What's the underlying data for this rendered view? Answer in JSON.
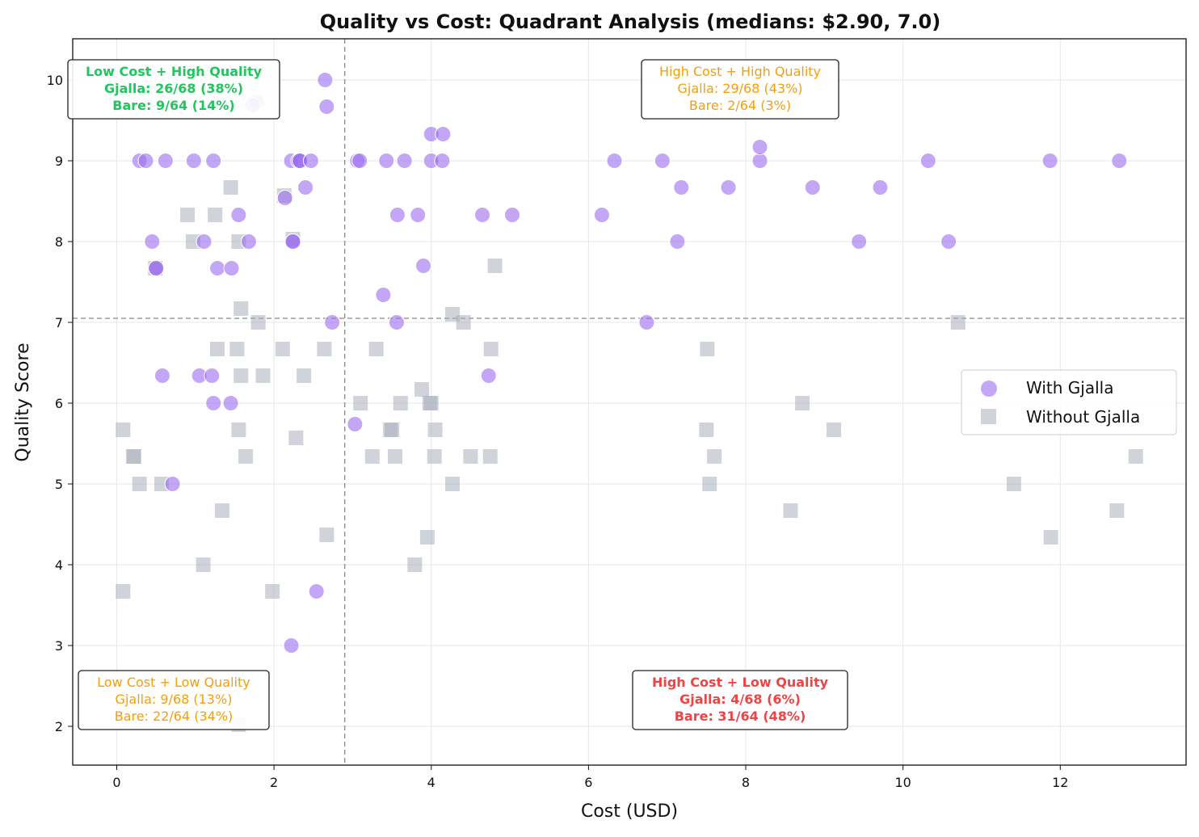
{
  "chart_data": {
    "type": "scatter",
    "title": "Quality vs Cost: Quadrant Analysis (medians: $2.90, 7.0)",
    "xlabel": "Cost (USD)",
    "ylabel": "Quality Score",
    "xlim": [
      -0.56,
      13.6
    ],
    "ylim": [
      1.52,
      10.51
    ],
    "xticks": [
      0,
      2,
      4,
      6,
      8,
      10,
      12
    ],
    "yticks": [
      2,
      3,
      4,
      5,
      6,
      7,
      8,
      9,
      10
    ],
    "grid": true,
    "median_lines": {
      "x": 2.9,
      "y": 7.05
    },
    "legend": {
      "placement": "right",
      "entries": [
        "With Gjalla",
        "Without Gjalla"
      ]
    },
    "colors": {
      "gjalla": "#9b6cf0",
      "bare": "#a9afbb",
      "green": "#22c55e",
      "orange": "#f59e0b",
      "red": "#ef4444"
    },
    "series": [
      {
        "name": "With Gjalla",
        "marker": "circle",
        "points": [
          [
            0.29,
            9
          ],
          [
            0.37,
            9
          ],
          [
            0.62,
            9
          ],
          [
            0.98,
            9
          ],
          [
            1.23,
            9
          ],
          [
            2.22,
            9
          ],
          [
            2.31,
            9
          ],
          [
            2.33,
            9
          ],
          [
            2.33,
            9
          ],
          [
            2.47,
            9
          ],
          [
            3.06,
            9
          ],
          [
            3.09,
            9
          ],
          [
            3.43,
            9
          ],
          [
            3.66,
            9
          ],
          [
            4.0,
            9
          ],
          [
            4.14,
            9
          ],
          [
            6.33,
            9
          ],
          [
            6.94,
            9
          ],
          [
            8.18,
            9
          ],
          [
            10.32,
            9
          ],
          [
            11.87,
            9
          ],
          [
            12.75,
            9
          ],
          [
            2.65,
            10
          ],
          [
            2.67,
            9.67
          ],
          [
            1.78,
            9.73
          ],
          [
            1.73,
            9.69
          ],
          [
            4.0,
            9.33
          ],
          [
            4.15,
            9.33
          ],
          [
            8.18,
            9.17
          ],
          [
            2.4,
            8.67
          ],
          [
            2.14,
            8.54
          ],
          [
            7.18,
            8.67
          ],
          [
            7.78,
            8.67
          ],
          [
            8.85,
            8.67
          ],
          [
            9.71,
            8.67
          ],
          [
            1.55,
            8.33
          ],
          [
            3.57,
            8.33
          ],
          [
            3.83,
            8.33
          ],
          [
            4.65,
            8.33
          ],
          [
            5.03,
            8.33
          ],
          [
            6.17,
            8.33
          ],
          [
            0.45,
            8
          ],
          [
            1.11,
            8
          ],
          [
            1.68,
            8
          ],
          [
            2.24,
            8
          ],
          [
            2.24,
            8
          ],
          [
            7.13,
            8
          ],
          [
            9.44,
            8
          ],
          [
            10.58,
            8
          ],
          [
            0.5,
            7.67
          ],
          [
            0.5,
            7.67
          ],
          [
            1.28,
            7.67
          ],
          [
            1.46,
            7.67
          ],
          [
            3.9,
            7.7
          ],
          [
            3.39,
            7.34
          ],
          [
            2.74,
            7
          ],
          [
            3.56,
            7
          ],
          [
            6.74,
            7
          ],
          [
            0.58,
            6.34
          ],
          [
            1.05,
            6.34
          ],
          [
            1.21,
            6.34
          ],
          [
            4.73,
            6.34
          ],
          [
            1.23,
            6
          ],
          [
            1.45,
            6
          ],
          [
            3.03,
            5.74
          ],
          [
            0.71,
            5
          ],
          [
            2.54,
            3.67
          ],
          [
            2.22,
            3.0
          ]
        ]
      },
      {
        "name": "Without Gjalla",
        "marker": "square",
        "points": [
          [
            0.08,
            5.67
          ],
          [
            0.08,
            3.67
          ],
          [
            0.21,
            5.34
          ],
          [
            0.22,
            5.34
          ],
          [
            0.29,
            5.0
          ],
          [
            0.57,
            5.0
          ],
          [
            0.49,
            7.67
          ],
          [
            0.9,
            8.33
          ],
          [
            0.97,
            8
          ],
          [
            1.25,
            8.33
          ],
          [
            1.45,
            8.67
          ],
          [
            1.55,
            8
          ],
          [
            1.28,
            6.67
          ],
          [
            1.53,
            6.67
          ],
          [
            1.58,
            7.17
          ],
          [
            1.58,
            6.34
          ],
          [
            1.55,
            5.67
          ],
          [
            1.64,
            5.34
          ],
          [
            1.34,
            4.67
          ],
          [
            1.1,
            4.0
          ],
          [
            1.8,
            7.0
          ],
          [
            1.86,
            6.34
          ],
          [
            1.98,
            3.67
          ],
          [
            2.11,
            6.67
          ],
          [
            2.13,
            8.57
          ],
          [
            2.24,
            8.03
          ],
          [
            2.28,
            5.57
          ],
          [
            2.38,
            6.34
          ],
          [
            2.64,
            6.67
          ],
          [
            2.67,
            4.37
          ],
          [
            1.55,
            2.02
          ],
          [
            3.3,
            6.67
          ],
          [
            3.1,
            6
          ],
          [
            3.25,
            5.34
          ],
          [
            3.48,
            5.67
          ],
          [
            3.5,
            5.67
          ],
          [
            3.54,
            5.34
          ],
          [
            3.61,
            6
          ],
          [
            3.88,
            6.17
          ],
          [
            3.98,
            6
          ],
          [
            4.0,
            6
          ],
          [
            4.05,
            5.67
          ],
          [
            4.04,
            5.34
          ],
          [
            3.95,
            4.34
          ],
          [
            3.79,
            4.0
          ],
          [
            4.27,
            7.1
          ],
          [
            4.41,
            7.0
          ],
          [
            4.27,
            5.0
          ],
          [
            4.5,
            5.34
          ],
          [
            4.75,
            5.34
          ],
          [
            4.76,
            6.67
          ],
          [
            4.81,
            7.7
          ],
          [
            7.51,
            6.67
          ],
          [
            7.5,
            5.67
          ],
          [
            7.6,
            5.34
          ],
          [
            7.54,
            5.0
          ],
          [
            8.57,
            4.67
          ],
          [
            8.72,
            6.0
          ],
          [
            9.12,
            5.67
          ],
          [
            10.7,
            7.0
          ],
          [
            11.41,
            5.0
          ],
          [
            11.88,
            4.34
          ],
          [
            12.72,
            4.67
          ],
          [
            12.96,
            5.34
          ]
        ]
      }
    ],
    "annotations": [
      {
        "quadrant": "top-left",
        "color": "green",
        "bold": true,
        "lines": [
          "Low Cost + High Quality",
          "Gjalla: 26/68 (38%)",
          "Bare: 9/64 (14%)"
        ]
      },
      {
        "quadrant": "top-right",
        "color": "orange",
        "bold": false,
        "lines": [
          "High Cost + High Quality",
          "Gjalla: 29/68 (43%)",
          "Bare: 2/64 (3%)"
        ]
      },
      {
        "quadrant": "bottom-left",
        "color": "orange",
        "bold": false,
        "lines": [
          "Low Cost + Low Quality",
          "Gjalla: 9/68 (13%)",
          "Bare: 22/64 (34%)"
        ]
      },
      {
        "quadrant": "bottom-right",
        "color": "red",
        "bold": true,
        "lines": [
          "High Cost + Low Quality",
          "Gjalla: 4/68 (6%)",
          "Bare: 31/64 (48%)"
        ]
      }
    ]
  }
}
